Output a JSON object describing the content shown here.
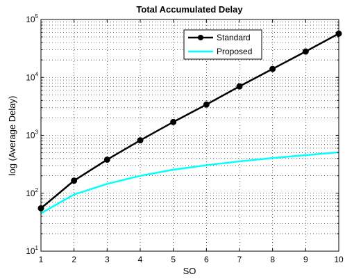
{
  "chart_data": {
    "type": "line",
    "title": "Total Accumulated Delay",
    "xlabel": "SO",
    "ylabel": "log (Average Delay)",
    "xlim": [
      1,
      10
    ],
    "ylim": [
      10,
      100000
    ],
    "yscale": "log",
    "grid": true,
    "legend_placement": "top-right",
    "x": [
      1,
      2,
      3,
      4,
      5,
      6,
      7,
      8,
      9,
      10
    ],
    "xticks": [
      "1",
      "2",
      "3",
      "4",
      "5",
      "6",
      "7",
      "8",
      "9",
      "10"
    ],
    "yticks": [
      {
        "base": "10",
        "exp": "1",
        "value": 10
      },
      {
        "base": "10",
        "exp": "2",
        "value": 100
      },
      {
        "base": "10",
        "exp": "3",
        "value": 1000
      },
      {
        "base": "10",
        "exp": "4",
        "value": 10000
      },
      {
        "base": "10",
        "exp": "5",
        "value": 100000
      }
    ],
    "series": [
      {
        "name": "Standard",
        "color": "#000000",
        "marker": "circle",
        "values": [
          55,
          165,
          380,
          820,
          1700,
          3400,
          7000,
          14000,
          28000,
          57000
        ]
      },
      {
        "name": "Proposed",
        "color": "#00ffff",
        "marker": "none",
        "values": [
          45,
          95,
          145,
          200,
          255,
          305,
          355,
          405,
          455,
          510
        ]
      }
    ]
  }
}
